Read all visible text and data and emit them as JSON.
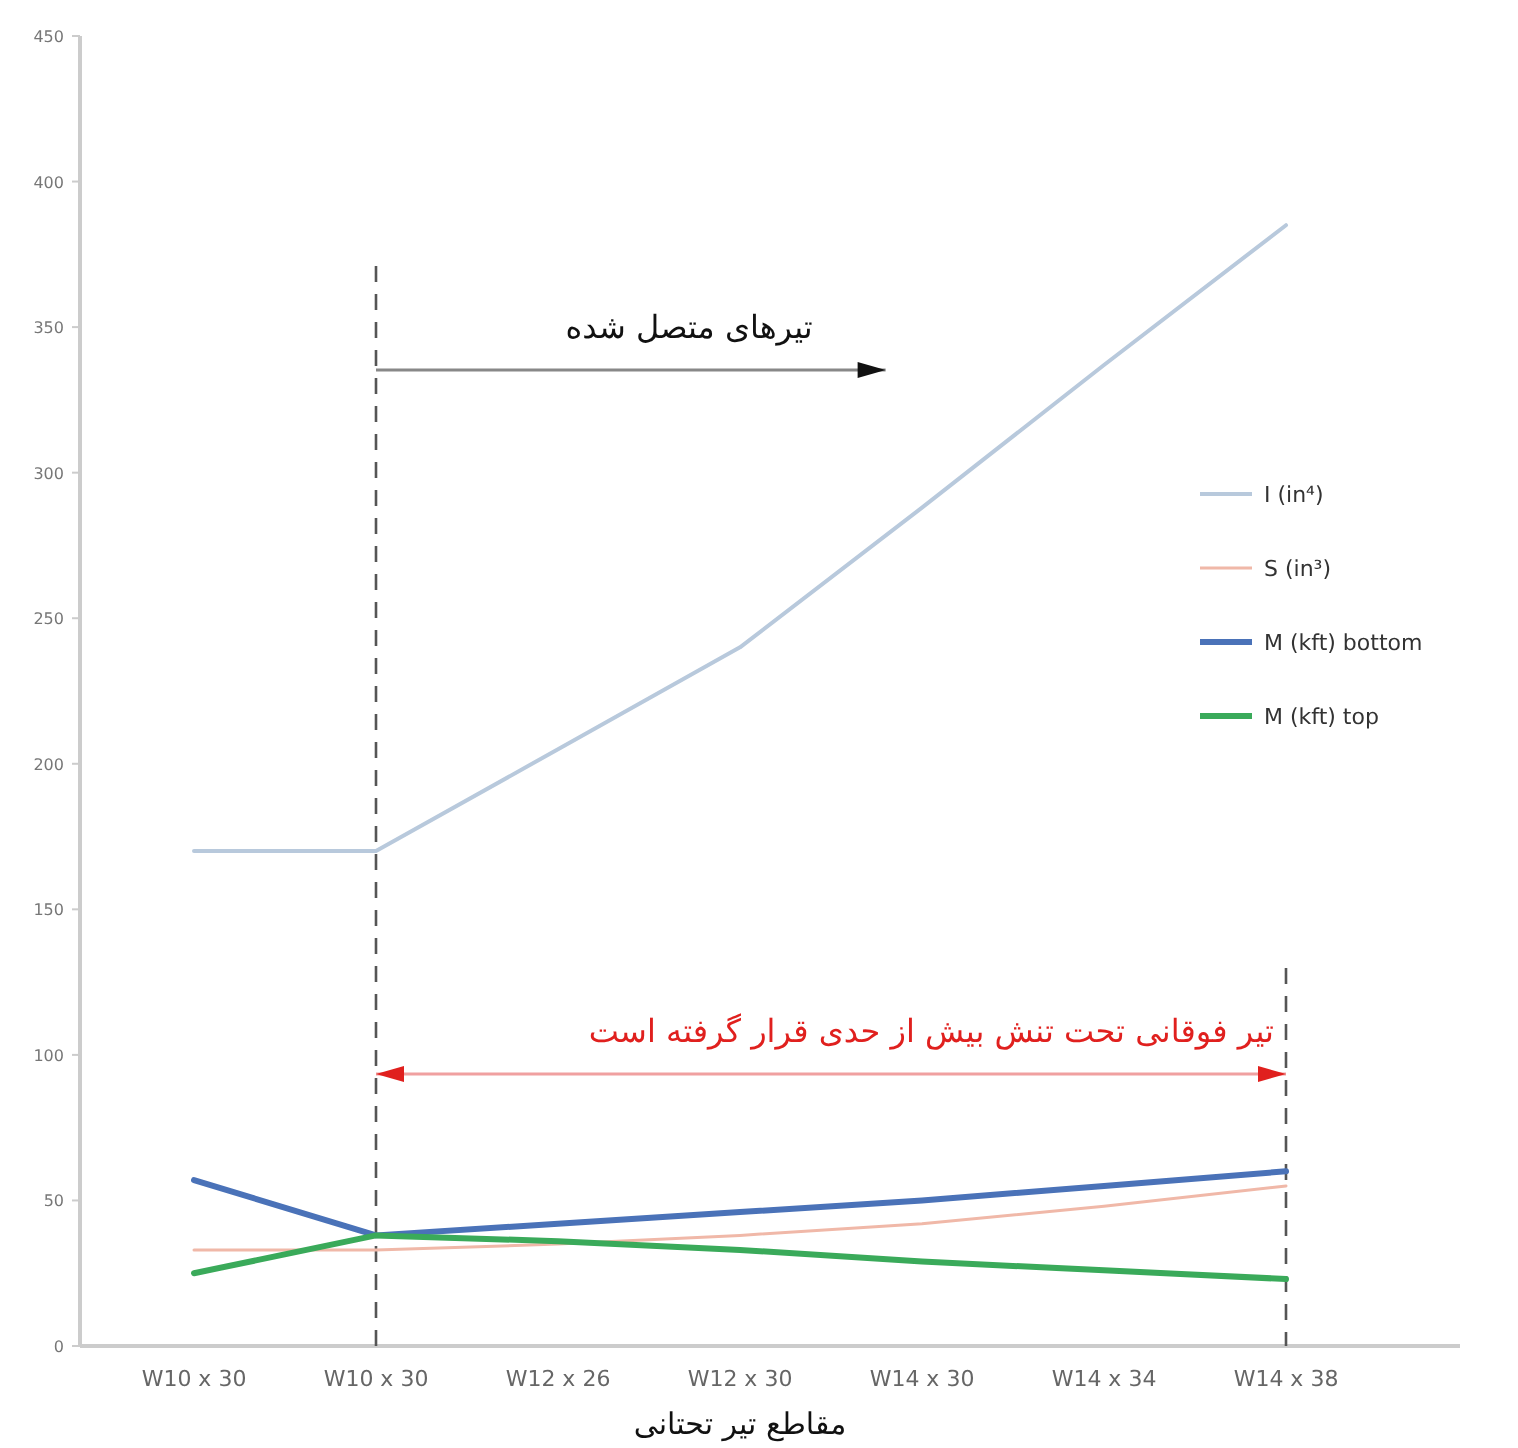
{
  "chart_data": {
    "type": "line",
    "categories": [
      "W10 x 30",
      "W10 x 30",
      "W12 x 26",
      "W12 x 30",
      "W14 x 30",
      "W14 x 34",
      "W14 x 38"
    ],
    "series": [
      {
        "name": "I (in⁴)",
        "color": "#b8c9dc",
        "values": [
          170,
          170,
          205,
          240,
          288,
          337,
          385
        ]
      },
      {
        "name": "S (in³)",
        "color": "#f0b8a8",
        "values": [
          33,
          33,
          35,
          38,
          42,
          48,
          55
        ]
      },
      {
        "name": "M (kft) bottom",
        "color": "#4a72b8",
        "values": [
          57,
          38,
          42,
          46,
          50,
          55,
          60
        ]
      },
      {
        "name": "M (kft) top",
        "color": "#3aaa5a",
        "values": [
          25,
          38,
          36,
          33,
          29,
          26,
          23
        ]
      }
    ],
    "xlabel": "مقاطع تیر تحتانی",
    "ylim": [
      0,
      450
    ],
    "yticks": [
      0,
      50,
      100,
      150,
      200,
      250,
      300,
      350,
      400,
      450
    ],
    "ref_lines": [
      {
        "axis": "x",
        "value": "W14 x 38",
        "line_style": "dashed",
        "color": "#555555"
      }
    ],
    "annotations": [
      "تیرهای متصل شده",
      "تیر فوقانی تحت تنش بیش از حدی قرار گرفته است"
    ],
    "legend": "right",
    "marker": "none",
    "line_style": "solid"
  }
}
